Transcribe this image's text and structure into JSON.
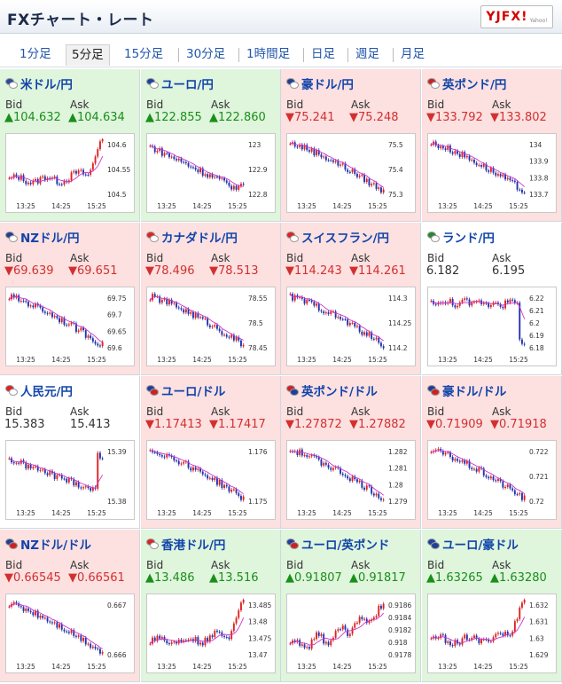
{
  "header": {
    "title": "FXチャート・レート",
    "logo": "YJFX!",
    "logo_sub": "Yahoo!"
  },
  "tabs": [
    {
      "label": "1分足",
      "active": false
    },
    {
      "label": "5分足",
      "active": true
    },
    {
      "label": "15分足",
      "active": false
    },
    {
      "label": "30分足",
      "active": false
    },
    {
      "label": "1時間足",
      "active": false
    },
    {
      "label": "日足",
      "active": false
    },
    {
      "label": "週足",
      "active": false
    },
    {
      "label": "月足",
      "active": false
    }
  ],
  "labels": {
    "bid": "Bid",
    "ask": "Ask"
  },
  "colors": {
    "up_bg": "#dff5dc",
    "down_bg": "#fde0e0",
    "up_text": "#1a8f1a",
    "down_text": "#d23030",
    "link": "#1144aa",
    "ma_line": "#cc33cc",
    "candle_up": "#dd2222",
    "candle_down": "#2233aa"
  },
  "pairs": [
    {
      "name": "米ドル/円",
      "dir": "up",
      "bid": "▲104.632",
      "ask": "▲104.634",
      "flag1": "#2b4aa0",
      "flag2": "#ffffff",
      "chart_data": {
        "type": "candlestick",
        "x_ticks": [
          "13:25",
          "14:25",
          "15:25"
        ],
        "y_ticks": [
          "104.6",
          "104.55",
          "104.5"
        ],
        "ylim": [
          104.48,
          104.64
        ],
        "trend": "up-end"
      }
    },
    {
      "name": "ユーロ/円",
      "dir": "up",
      "bid": "▲122.855",
      "ask": "▲122.860",
      "flag1": "#1f3fa0",
      "flag2": "#ffffff",
      "chart_data": {
        "type": "candlestick",
        "x_ticks": [
          "13:25",
          "14:25",
          "15:25"
        ],
        "y_ticks": [
          "123",
          "122.9",
          "122.8"
        ],
        "ylim": [
          122.78,
          123.03
        ],
        "trend": "down-tail-up"
      }
    },
    {
      "name": "豪ドル/円",
      "dir": "down",
      "bid": "▼75.241",
      "ask": "▼75.248",
      "flag1": "#1f3f90",
      "flag2": "#ffffff",
      "chart_data": {
        "type": "candlestick",
        "x_ticks": [
          "13:25",
          "14:25",
          "15:25"
        ],
        "y_ticks": [
          "75.5",
          "75.4",
          "75.3"
        ],
        "ylim": [
          75.23,
          75.52
        ],
        "trend": "down"
      }
    },
    {
      "name": "英ポンド/円",
      "dir": "down",
      "bid": "▼133.792",
      "ask": "▼133.802",
      "flag1": "#cc2222",
      "flag2": "#ffffff",
      "chart_data": {
        "type": "candlestick",
        "x_ticks": [
          "13:25",
          "14:25",
          "15:25"
        ],
        "y_ticks": [
          "134",
          "133.9",
          "133.8",
          "133.7"
        ],
        "ylim": [
          133.68,
          134.03
        ],
        "trend": "down"
      }
    },
    {
      "name": "NZドル/円",
      "dir": "down",
      "bid": "▼69.639",
      "ask": "▼69.651",
      "flag1": "#1f3f90",
      "flag2": "#ffffff",
      "chart_data": {
        "type": "candlestick",
        "x_ticks": [
          "13:25",
          "14:25",
          "15:25"
        ],
        "y_ticks": [
          "69.75",
          "69.7",
          "69.65",
          "69.6"
        ],
        "ylim": [
          69.58,
          69.78
        ],
        "trend": "down"
      }
    },
    {
      "name": "カナダドル/円",
      "dir": "down",
      "bid": "▼78.496",
      "ask": "▼78.513",
      "flag1": "#dd2222",
      "flag2": "#ffffff",
      "chart_data": {
        "type": "candlestick",
        "x_ticks": [
          "13:25",
          "14:25",
          "15:25"
        ],
        "y_ticks": [
          "78.55",
          "78.5",
          "78.45"
        ],
        "ylim": [
          78.44,
          78.6
        ],
        "trend": "down"
      }
    },
    {
      "name": "スイスフラン/円",
      "dir": "down",
      "bid": "▼114.243",
      "ask": "▼114.261",
      "flag1": "#dd2222",
      "flag2": "#ffffff",
      "chart_data": {
        "type": "candlestick",
        "x_ticks": [
          "13:25",
          "14:25",
          "15:25"
        ],
        "y_ticks": [
          "114.3",
          "114.25",
          "114.2"
        ],
        "ylim": [
          114.14,
          114.32
        ],
        "trend": "down"
      }
    },
    {
      "name": "ランド/円",
      "dir": "flat",
      "bid": "6.182",
      "ask": "6.195",
      "flag1": "#228833",
      "flag2": "#ffffff",
      "chart_data": {
        "type": "candlestick",
        "x_ticks": [
          "13:25",
          "14:25",
          "15:25"
        ],
        "y_ticks": [
          "6.22",
          "6.21",
          "6.2",
          "6.19",
          "6.18"
        ],
        "ylim": [
          6.175,
          6.225
        ],
        "trend": "flat-drop"
      }
    },
    {
      "name": "人民元/円",
      "dir": "flat",
      "bid": "15.383",
      "ask": "15.413",
      "flag1": "#dd2222",
      "flag2": "#ffffff",
      "chart_data": {
        "type": "candlestick",
        "x_ticks": [
          "13:25",
          "14:25",
          "15:25"
        ],
        "y_ticks": [
          "15.39",
          "15.38"
        ],
        "ylim": [
          15.37,
          15.395
        ],
        "trend": "down-end-up"
      }
    },
    {
      "name": "ユーロ/ドル",
      "dir": "down",
      "bid": "▼1.17413",
      "ask": "▼1.17417",
      "flag1": "#1f3fa0",
      "flag2": "#cc2222",
      "chart_data": {
        "type": "candlestick",
        "x_ticks": [
          "13:25",
          "14:25",
          "15:25"
        ],
        "y_ticks": [
          "1.176",
          "1.175"
        ],
        "ylim": [
          1.1738,
          1.1772
        ],
        "trend": "down"
      }
    },
    {
      "name": "英ポンド/ドル",
      "dir": "down",
      "bid": "▼1.27872",
      "ask": "▼1.27882",
      "flag1": "#cc2222",
      "flag2": "#1f3fa0",
      "chart_data": {
        "type": "candlestick",
        "x_ticks": [
          "13:25",
          "14:25",
          "15:25"
        ],
        "y_ticks": [
          "1.282",
          "1.281",
          "1.28",
          "1.279"
        ],
        "ylim": [
          1.2785,
          1.2825
        ],
        "trend": "down"
      }
    },
    {
      "name": "豪ドル/ドル",
      "dir": "down",
      "bid": "▼0.71909",
      "ask": "▼0.71918",
      "flag1": "#1f3f90",
      "flag2": "#cc2222",
      "chart_data": {
        "type": "candlestick",
        "x_ticks": [
          "13:25",
          "14:25",
          "15:25"
        ],
        "y_ticks": [
          "0.722",
          "0.721",
          "0.72"
        ],
        "ylim": [
          0.7188,
          0.7226
        ],
        "trend": "down"
      }
    },
    {
      "name": "NZドル/ドル",
      "dir": "down",
      "bid": "▼0.66545",
      "ask": "▼0.66561",
      "flag1": "#1f3f90",
      "flag2": "#cc2222",
      "chart_data": {
        "type": "candlestick",
        "x_ticks": [
          "13:25",
          "14:25",
          "15:25"
        ],
        "y_ticks": [
          "0.667",
          "0.666"
        ],
        "ylim": [
          0.6653,
          0.6676
        ],
        "trend": "down"
      }
    },
    {
      "name": "香港ドル/円",
      "dir": "up",
      "bid": "▲13.486",
      "ask": "▲13.516",
      "flag1": "#dd2222",
      "flag2": "#ffffff",
      "chart_data": {
        "type": "candlestick",
        "x_ticks": [
          "13:25",
          "14:25",
          "15:25"
        ],
        "y_ticks": [
          "13.485",
          "13.48",
          "13.475",
          "13.47"
        ],
        "ylim": [
          13.467,
          13.487
        ],
        "trend": "up-end"
      }
    },
    {
      "name": "ユーロ/英ポンド",
      "dir": "up",
      "bid": "▲0.91807",
      "ask": "▲0.91817",
      "flag1": "#1f3fa0",
      "flag2": "#cc2222",
      "chart_data": {
        "type": "candlestick",
        "x_ticks": [
          "13:25",
          "14:25",
          "15:25"
        ],
        "y_ticks": [
          "0.9186",
          "0.9184",
          "0.9182",
          "0.918",
          "0.9178"
        ],
        "ylim": [
          0.9176,
          0.9188
        ],
        "trend": "up"
      }
    },
    {
      "name": "ユーロ/豪ドル",
      "dir": "up",
      "bid": "▲1.63265",
      "ask": "▲1.63280",
      "flag1": "#1f3fa0",
      "flag2": "#1f3f90",
      "chart_data": {
        "type": "candlestick",
        "x_ticks": [
          "13:25",
          "14:25",
          "15:25"
        ],
        "y_ticks": [
          "1.632",
          "1.631",
          "1.63",
          "1.629"
        ],
        "ylim": [
          1.6285,
          1.6329
        ],
        "trend": "up-end"
      }
    }
  ]
}
